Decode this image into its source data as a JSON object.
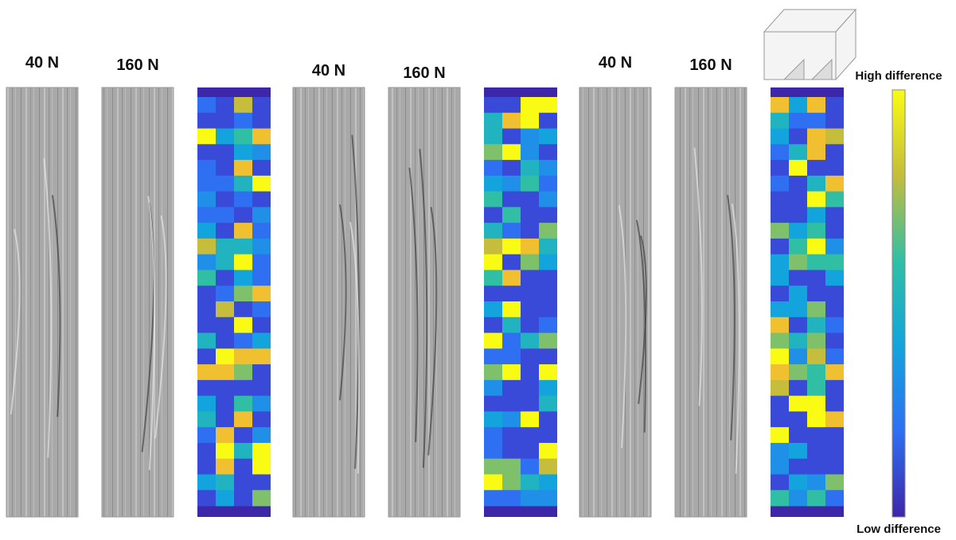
{
  "groups": [
    {
      "labels": [
        "40 N",
        "160 N"
      ]
    },
    {
      "labels": [
        "40 N",
        "160 N"
      ]
    },
    {
      "labels": [
        "40 N",
        "160 N"
      ]
    }
  ],
  "colorbar": {
    "high": "High difference",
    "low": "Low difference"
  }
}
